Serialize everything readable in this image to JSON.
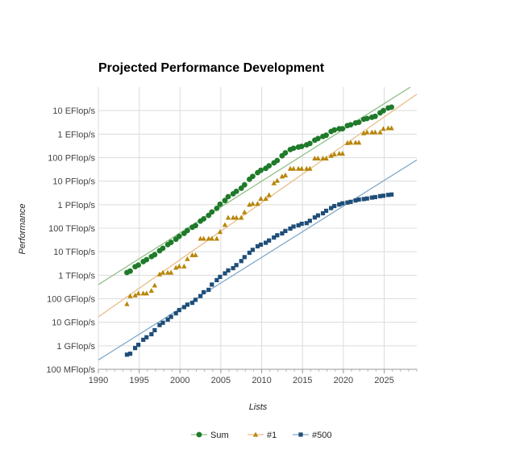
{
  "chart_data": {
    "type": "scatter",
    "title": "Projected Performance Development",
    "xlabel": "Lists",
    "ylabel": "Performance",
    "y_scale": "log",
    "xlim": [
      1990,
      2029
    ],
    "ylim_flops": [
      100000000.0,
      1e+20
    ],
    "x_ticks": [
      1990,
      1995,
      2000,
      2005,
      2010,
      2015,
      2020,
      2025
    ],
    "x_tick_labels": [
      "1990",
      "1995",
      "2000",
      "2005",
      "2010",
      "2015",
      "2020",
      "2025"
    ],
    "y_ticks": [
      100000000.0,
      1000000000.0,
      10000000000.0,
      100000000000.0,
      1000000000000.0,
      10000000000000.0,
      100000000000000.0,
      1000000000000000.0,
      1e+16,
      1e+17,
      1e+18,
      1e+19
    ],
    "y_tick_labels": [
      "100 MFlop/s",
      "1 GFlop/s",
      "10 GFlop/s",
      "100 GFlop/s",
      "1 TFlop/s",
      "10 TFlop/s",
      "100 TFlop/s",
      "1 PFlop/s",
      "10 PFlop/s",
      "100 PFlop/s",
      "1 EFlop/s",
      "10 EFlop/s"
    ],
    "grid": true,
    "legend_position": "bottom",
    "series": [
      {
        "name": "Sum",
        "marker": "circle",
        "color": "#1f7a2a",
        "trend_color": "#8fbf86",
        "trend_line": [
          [
            1990,
            400000000000.0
          ],
          [
            2028.2,
            1e+20
          ]
        ],
        "points": [
          [
            1993.5,
            1300000000000.0
          ],
          [
            1993.9,
            1500000000000.0
          ],
          [
            1994.5,
            2300000000000.0
          ],
          [
            1994.9,
            2700000000000.0
          ],
          [
            1995.5,
            3800000000000.0
          ],
          [
            1995.9,
            4600000000000.0
          ],
          [
            1996.5,
            6200000000000.0
          ],
          [
            1996.9,
            7500000000000.0
          ],
          [
            1997.5,
            11000000000000.0
          ],
          [
            1997.9,
            14000000000000.0
          ],
          [
            1998.5,
            20000000000000.0
          ],
          [
            1998.9,
            25000000000000.0
          ],
          [
            1999.5,
            34000000000000.0
          ],
          [
            1999.9,
            45000000000000.0
          ],
          [
            2000.5,
            60000000000000.0
          ],
          [
            2000.9,
            80000000000000.0
          ],
          [
            2001.5,
            110000000000000.0
          ],
          [
            2001.9,
            130000000000000.0
          ],
          [
            2002.5,
            200000000000000.0
          ],
          [
            2002.9,
            250000000000000.0
          ],
          [
            2003.5,
            350000000000000.0
          ],
          [
            2003.9,
            490000000000000.0
          ],
          [
            2004.5,
            700000000000000.0
          ],
          [
            2004.9,
            1050000000000000.0
          ],
          [
            2005.5,
            1500000000000000.0
          ],
          [
            2005.9,
            2200000000000000.0
          ],
          [
            2006.5,
            2900000000000000.0
          ],
          [
            2006.9,
            3700000000000000.0
          ],
          [
            2007.5,
            5000000000000000.0
          ],
          [
            2007.9,
            7000000000000000.0
          ],
          [
            2008.5,
            1.2e+16
          ],
          [
            2008.9,
            1.6e+16
          ],
          [
            2009.5,
            2.3e+16
          ],
          [
            2009.9,
            2.9e+16
          ],
          [
            2010.5,
            3.5e+16
          ],
          [
            2010.9,
            4.5e+16
          ],
          [
            2011.5,
            6e+16
          ],
          [
            2011.9,
            7.5e+16
          ],
          [
            2012.5,
            1.2e+17
          ],
          [
            2012.9,
            1.6e+17
          ],
          [
            2013.5,
            2.2e+17
          ],
          [
            2013.9,
            2.5e+17
          ],
          [
            2014.5,
            2.8e+17
          ],
          [
            2014.9,
            3e+17
          ],
          [
            2015.5,
            3.5e+17
          ],
          [
            2015.9,
            4e+17
          ],
          [
            2016.5,
            5.5e+17
          ],
          [
            2016.9,
            6.5e+17
          ],
          [
            2017.5,
            8e+17
          ],
          [
            2017.9,
            9e+17
          ],
          [
            2018.5,
            1.3e+18
          ],
          [
            2018.9,
            1.5e+18
          ],
          [
            2019.5,
            1.7e+18
          ],
          [
            2019.9,
            1.7e+18
          ],
          [
            2020.5,
            2.3e+18
          ],
          [
            2020.9,
            2.5e+18
          ],
          [
            2021.5,
            3e+18
          ],
          [
            2021.9,
            3.2e+18
          ],
          [
            2022.5,
            4.3e+18
          ],
          [
            2022.9,
            4.6e+18
          ],
          [
            2023.5,
            5.2e+18
          ],
          [
            2023.9,
            5.7e+18
          ],
          [
            2024.5,
            8e+18
          ],
          [
            2024.9,
            1e+19
          ],
          [
            2025.5,
            1.3e+19
          ],
          [
            2025.9,
            1.4e+19
          ]
        ]
      },
      {
        "name": "#1",
        "marker": "triangle",
        "color": "#b8860b",
        "trend_color": "#e8bf8a",
        "trend_line": [
          [
            1990,
            17000000000.0
          ],
          [
            2029,
            5e+19
          ]
        ],
        "points": [
          [
            1993.5,
            60000000000.0
          ],
          [
            1993.9,
            130000000000.0
          ],
          [
            1994.5,
            140000000000.0
          ],
          [
            1994.9,
            170000000000.0
          ],
          [
            1995.5,
            170000000000.0
          ],
          [
            1995.9,
            170000000000.0
          ],
          [
            1996.5,
            220000000000.0
          ],
          [
            1996.9,
            370000000000.0
          ],
          [
            1997.5,
            1100000000000.0
          ],
          [
            1997.9,
            1300000000000.0
          ],
          [
            1998.5,
            1300000000000.0
          ],
          [
            1998.9,
            1300000000000.0
          ],
          [
            1999.5,
            2100000000000.0
          ],
          [
            1999.9,
            2400000000000.0
          ],
          [
            2000.5,
            2400000000000.0
          ],
          [
            2000.9,
            4900000000000.0
          ],
          [
            2001.5,
            7200000000000.0
          ],
          [
            2001.9,
            7200000000000.0
          ],
          [
            2002.5,
            36000000000000.0
          ],
          [
            2002.9,
            36000000000000.0
          ],
          [
            2003.5,
            36000000000000.0
          ],
          [
            2003.9,
            36000000000000.0
          ],
          [
            2004.5,
            36000000000000.0
          ],
          [
            2004.9,
            70000000000000.0
          ],
          [
            2005.5,
            140000000000000.0
          ],
          [
            2005.9,
            280000000000000.0
          ],
          [
            2006.5,
            280000000000000.0
          ],
          [
            2006.9,
            280000000000000.0
          ],
          [
            2007.5,
            280000000000000.0
          ],
          [
            2007.9,
            480000000000000.0
          ],
          [
            2008.5,
            1000000000000000.0
          ],
          [
            2008.9,
            1100000000000000.0
          ],
          [
            2009.5,
            1100000000000000.0
          ],
          [
            2009.9,
            1800000000000000.0
          ],
          [
            2010.5,
            1800000000000000.0
          ],
          [
            2010.9,
            2600000000000000.0
          ],
          [
            2011.5,
            8200000000000000.0
          ],
          [
            2011.9,
            1.05e+16
          ],
          [
            2012.5,
            1.6e+16
          ],
          [
            2012.9,
            1.8e+16
          ],
          [
            2013.5,
            3.4e+16
          ],
          [
            2013.9,
            3.4e+16
          ],
          [
            2014.5,
            3.4e+16
          ],
          [
            2014.9,
            3.4e+16
          ],
          [
            2015.5,
            3.4e+16
          ],
          [
            2015.9,
            3.4e+16
          ],
          [
            2016.5,
            9.3e+16
          ],
          [
            2016.9,
            9.3e+16
          ],
          [
            2017.5,
            9.3e+16
          ],
          [
            2017.9,
            9.3e+16
          ],
          [
            2018.5,
            1.2e+17
          ],
          [
            2018.9,
            1.4e+17
          ],
          [
            2019.5,
            1.5e+17
          ],
          [
            2019.9,
            1.5e+17
          ],
          [
            2020.5,
            4.2e+17
          ],
          [
            2020.9,
            4.4e+17
          ],
          [
            2021.5,
            4.4e+17
          ],
          [
            2021.9,
            4.4e+17
          ],
          [
            2022.5,
            1.1e+18
          ],
          [
            2022.9,
            1.2e+18
          ],
          [
            2023.5,
            1.2e+18
          ],
          [
            2023.9,
            1.2e+18
          ],
          [
            2024.5,
            1.2e+18
          ],
          [
            2024.9,
            1.7e+18
          ],
          [
            2025.5,
            1.8e+18
          ],
          [
            2025.9,
            1.8e+18
          ]
        ]
      },
      {
        "name": "#500",
        "marker": "square",
        "color": "#1f4e79",
        "trend_color": "#7fa8c9",
        "trend_line": [
          [
            1990,
            250000000.0
          ],
          [
            2029,
            8e+16
          ]
        ],
        "points": [
          [
            1993.5,
            420000000.0
          ],
          [
            1993.9,
            460000000.0
          ],
          [
            1994.5,
            800000000.0
          ],
          [
            1994.9,
            1100000000.0
          ],
          [
            1995.5,
            1800000000.0
          ],
          [
            1995.9,
            2300000000.0
          ],
          [
            1996.5,
            3100000000.0
          ],
          [
            1996.9,
            4600000000.0
          ],
          [
            1997.5,
            7600000000.0
          ],
          [
            1997.9,
            9500000000.0
          ],
          [
            1998.5,
            13000000000.0
          ],
          [
            1998.9,
            17000000000.0
          ],
          [
            1999.5,
            24000000000.0
          ],
          [
            1999.9,
            33000000000.0
          ],
          [
            2000.5,
            44000000000.0
          ],
          [
            2000.9,
            56000000000.0
          ],
          [
            2001.5,
            67000000000.0
          ],
          [
            2001.9,
            90000000000.0
          ],
          [
            2002.5,
            130000000000.0
          ],
          [
            2002.9,
            190000000000.0
          ],
          [
            2003.5,
            240000000000.0
          ],
          [
            2003.9,
            400000000000.0
          ],
          [
            2004.5,
            620000000000.0
          ],
          [
            2004.9,
            850000000000.0
          ],
          [
            2005.5,
            1200000000000.0
          ],
          [
            2005.9,
            1600000000000.0
          ],
          [
            2006.5,
            2000000000000.0
          ],
          [
            2006.9,
            2700000000000.0
          ],
          [
            2007.5,
            4000000000000.0
          ],
          [
            2007.9,
            5900000000000.0
          ],
          [
            2008.5,
            9000000000000.0
          ],
          [
            2008.9,
            12000000000000.0
          ],
          [
            2009.5,
            17000000000000.0
          ],
          [
            2009.9,
            20000000000000.0
          ],
          [
            2010.5,
            24000000000000.0
          ],
          [
            2010.9,
            30000000000000.0
          ],
          [
            2011.5,
            40000000000000.0
          ],
          [
            2011.9,
            50000000000000.0
          ],
          [
            2012.5,
            60000000000000.0
          ],
          [
            2012.9,
            76000000000000.0
          ],
          [
            2013.5,
            96000000000000.0
          ],
          [
            2013.9,
            117000000000000.0
          ],
          [
            2014.5,
            133000000000000.0
          ],
          [
            2014.9,
            154000000000000.0
          ],
          [
            2015.5,
            164000000000000.0
          ],
          [
            2015.9,
            206000000000000.0
          ],
          [
            2016.5,
            286000000000000.0
          ],
          [
            2016.9,
            349000000000000.0
          ],
          [
            2017.5,
            432000000000000.0
          ],
          [
            2017.9,
            548000000000000.0
          ],
          [
            2018.5,
            715000000000000.0
          ],
          [
            2018.9,
            874000000000000.0
          ],
          [
            2019.5,
            1020000000000000.0
          ],
          [
            2019.9,
            1140000000000000.0
          ],
          [
            2020.5,
            1230000000000000.0
          ],
          [
            2020.9,
            1320000000000000.0
          ],
          [
            2021.5,
            1510000000000000.0
          ],
          [
            2021.9,
            1650000000000000.0
          ],
          [
            2022.5,
            1730000000000000.0
          ],
          [
            2022.9,
            1830000000000000.0
          ],
          [
            2023.5,
            2000000000000000.0
          ],
          [
            2023.9,
            2100000000000000.0
          ],
          [
            2024.5,
            2300000000000000.0
          ],
          [
            2024.9,
            2400000000000000.0
          ],
          [
            2025.5,
            2600000000000000.0
          ],
          [
            2025.9,
            2700000000000000.0
          ]
        ]
      }
    ]
  }
}
